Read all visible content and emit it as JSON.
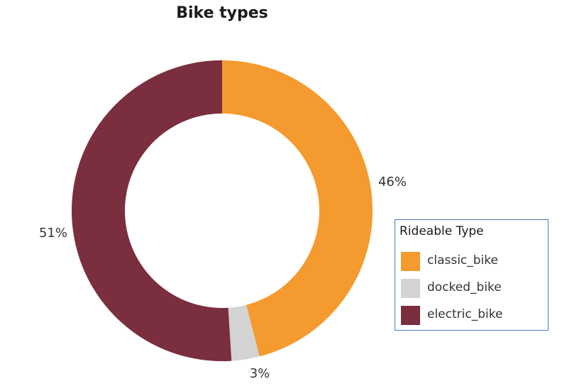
{
  "chart_data": {
    "type": "pie",
    "title": "Bike types",
    "categories": [
      "classic_bike",
      "docked_bike",
      "electric_bike"
    ],
    "values": [
      46,
      3,
      51
    ],
    "labels": [
      "46%",
      "3%",
      "51%"
    ],
    "colors": [
      "#f59a2e",
      "#d3d3d3",
      "#7a2e3e"
    ],
    "legend": {
      "title": "Rideable Type",
      "position": "right"
    },
    "style": "donut"
  }
}
